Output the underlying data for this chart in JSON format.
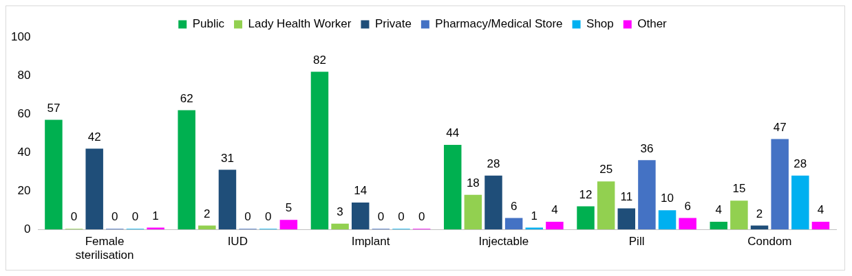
{
  "chart_data": {
    "type": "bar",
    "categories": [
      "Female sterilisation",
      "IUD",
      "Implant",
      "Injectable",
      "Pill",
      "Condom"
    ],
    "series": [
      {
        "name": "Public",
        "color": "#00b050",
        "values": [
          57,
          62,
          82,
          44,
          12,
          4
        ]
      },
      {
        "name": "Lady Health Worker",
        "color": "#92d050",
        "values": [
          0,
          2,
          3,
          18,
          25,
          15
        ]
      },
      {
        "name": "Private",
        "color": "#1f4e79",
        "values": [
          42,
          31,
          14,
          28,
          11,
          2
        ]
      },
      {
        "name": "Pharmacy/Medical Store",
        "color": "#4472c4",
        "values": [
          0,
          0,
          0,
          6,
          36,
          47
        ]
      },
      {
        "name": "Shop",
        "color": "#00b0f0",
        "values": [
          0,
          0,
          0,
          1,
          10,
          28
        ]
      },
      {
        "name": "Other",
        "color": "#ff00ff",
        "values": [
          1,
          5,
          0,
          4,
          6,
          4
        ]
      }
    ],
    "ylim": [
      0,
      100
    ],
    "yticks": [
      0,
      20,
      40,
      60,
      80,
      100
    ],
    "grid": false,
    "legend": "top",
    "data_labels": true
  }
}
